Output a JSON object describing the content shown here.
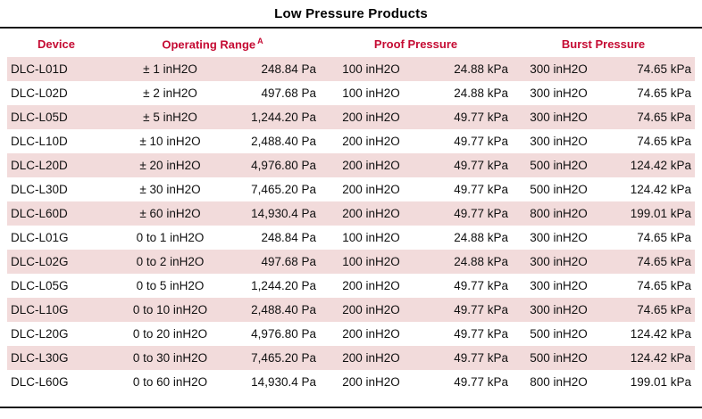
{
  "title": "Low Pressure Products",
  "colors": {
    "header_text": "#c50b33",
    "row_alt": "#f2dbdb",
    "rule": "#1a1a1a"
  },
  "table": {
    "headers": {
      "device": "Device",
      "operating_range": "Operating Range",
      "operating_range_footnote": "A",
      "proof_pressure": "Proof Pressure",
      "burst_pressure": "Burst Pressure"
    },
    "rows": [
      {
        "device": "DLC-L01D",
        "range_in": "± 1 inH2O",
        "range_pa": "248.84 Pa",
        "proof_in": "100 inH2O",
        "proof_kpa": "24.88 kPa",
        "burst_in": "300 inH2O",
        "burst_kpa": "74.65 kPa"
      },
      {
        "device": "DLC-L02D",
        "range_in": "± 2 inH2O",
        "range_pa": "497.68 Pa",
        "proof_in": "100 inH2O",
        "proof_kpa": "24.88 kPa",
        "burst_in": "300 inH2O",
        "burst_kpa": "74.65 kPa"
      },
      {
        "device": "DLC-L05D",
        "range_in": "± 5 inH2O",
        "range_pa": "1,244.20 Pa",
        "proof_in": "200 inH2O",
        "proof_kpa": "49.77 kPa",
        "burst_in": "300 inH2O",
        "burst_kpa": "74.65 kPa"
      },
      {
        "device": "DLC-L10D",
        "range_in": "± 10 inH2O",
        "range_pa": "2,488.40 Pa",
        "proof_in": "200 inH2O",
        "proof_kpa": "49.77 kPa",
        "burst_in": "300 inH2O",
        "burst_kpa": "74.65 kPa"
      },
      {
        "device": "DLC-L20D",
        "range_in": "± 20 inH2O",
        "range_pa": "4,976.80 Pa",
        "proof_in": "200 inH2O",
        "proof_kpa": "49.77 kPa",
        "burst_in": "500 inH2O",
        "burst_kpa": "124.42 kPa"
      },
      {
        "device": "DLC-L30D",
        "range_in": "± 30 inH2O",
        "range_pa": "7,465.20 Pa",
        "proof_in": "200 inH2O",
        "proof_kpa": "49.77 kPa",
        "burst_in": "500 inH2O",
        "burst_kpa": "124.42 kPa"
      },
      {
        "device": "DLC-L60D",
        "range_in": "± 60 inH2O",
        "range_pa": "14,930.4 Pa",
        "proof_in": "200 inH2O",
        "proof_kpa": "49.77 kPa",
        "burst_in": "800 inH2O",
        "burst_kpa": "199.01 kPa"
      },
      {
        "device": "DLC-L01G",
        "range_in": "0 to 1 inH2O",
        "range_pa": "248.84 Pa",
        "proof_in": "100 inH2O",
        "proof_kpa": "24.88 kPa",
        "burst_in": "300 inH2O",
        "burst_kpa": "74.65 kPa"
      },
      {
        "device": "DLC-L02G",
        "range_in": "0 to 2 inH2O",
        "range_pa": "497.68 Pa",
        "proof_in": "100 inH2O",
        "proof_kpa": "24.88 kPa",
        "burst_in": "300 inH2O",
        "burst_kpa": "74.65 kPa"
      },
      {
        "device": "DLC-L05G",
        "range_in": "0 to 5 inH2O",
        "range_pa": "1,244.20 Pa",
        "proof_in": "200 inH2O",
        "proof_kpa": "49.77 kPa",
        "burst_in": "300 inH2O",
        "burst_kpa": "74.65 kPa"
      },
      {
        "device": "DLC-L10G",
        "range_in": "0 to 10 inH2O",
        "range_pa": "2,488.40 Pa",
        "proof_in": "200 inH2O",
        "proof_kpa": "49.77 kPa",
        "burst_in": "300 inH2O",
        "burst_kpa": "74.65 kPa"
      },
      {
        "device": "DLC-L20G",
        "range_in": "0 to 20 inH2O",
        "range_pa": "4,976.80 Pa",
        "proof_in": "200 inH2O",
        "proof_kpa": "49.77 kPa",
        "burst_in": "500 inH2O",
        "burst_kpa": "124.42 kPa"
      },
      {
        "device": "DLC-L30G",
        "range_in": "0 to 30 inH2O",
        "range_pa": "7,465.20 Pa",
        "proof_in": "200 inH2O",
        "proof_kpa": "49.77 kPa",
        "burst_in": "500 inH2O",
        "burst_kpa": "124.42 kPa"
      },
      {
        "device": "DLC-L60G",
        "range_in": "0 to 60 inH2O",
        "range_pa": "14,930.4 Pa",
        "proof_in": "200 inH2O",
        "proof_kpa": "49.77 kPa",
        "burst_in": "800 inH2O",
        "burst_kpa": "199.01 kPa"
      }
    ]
  }
}
